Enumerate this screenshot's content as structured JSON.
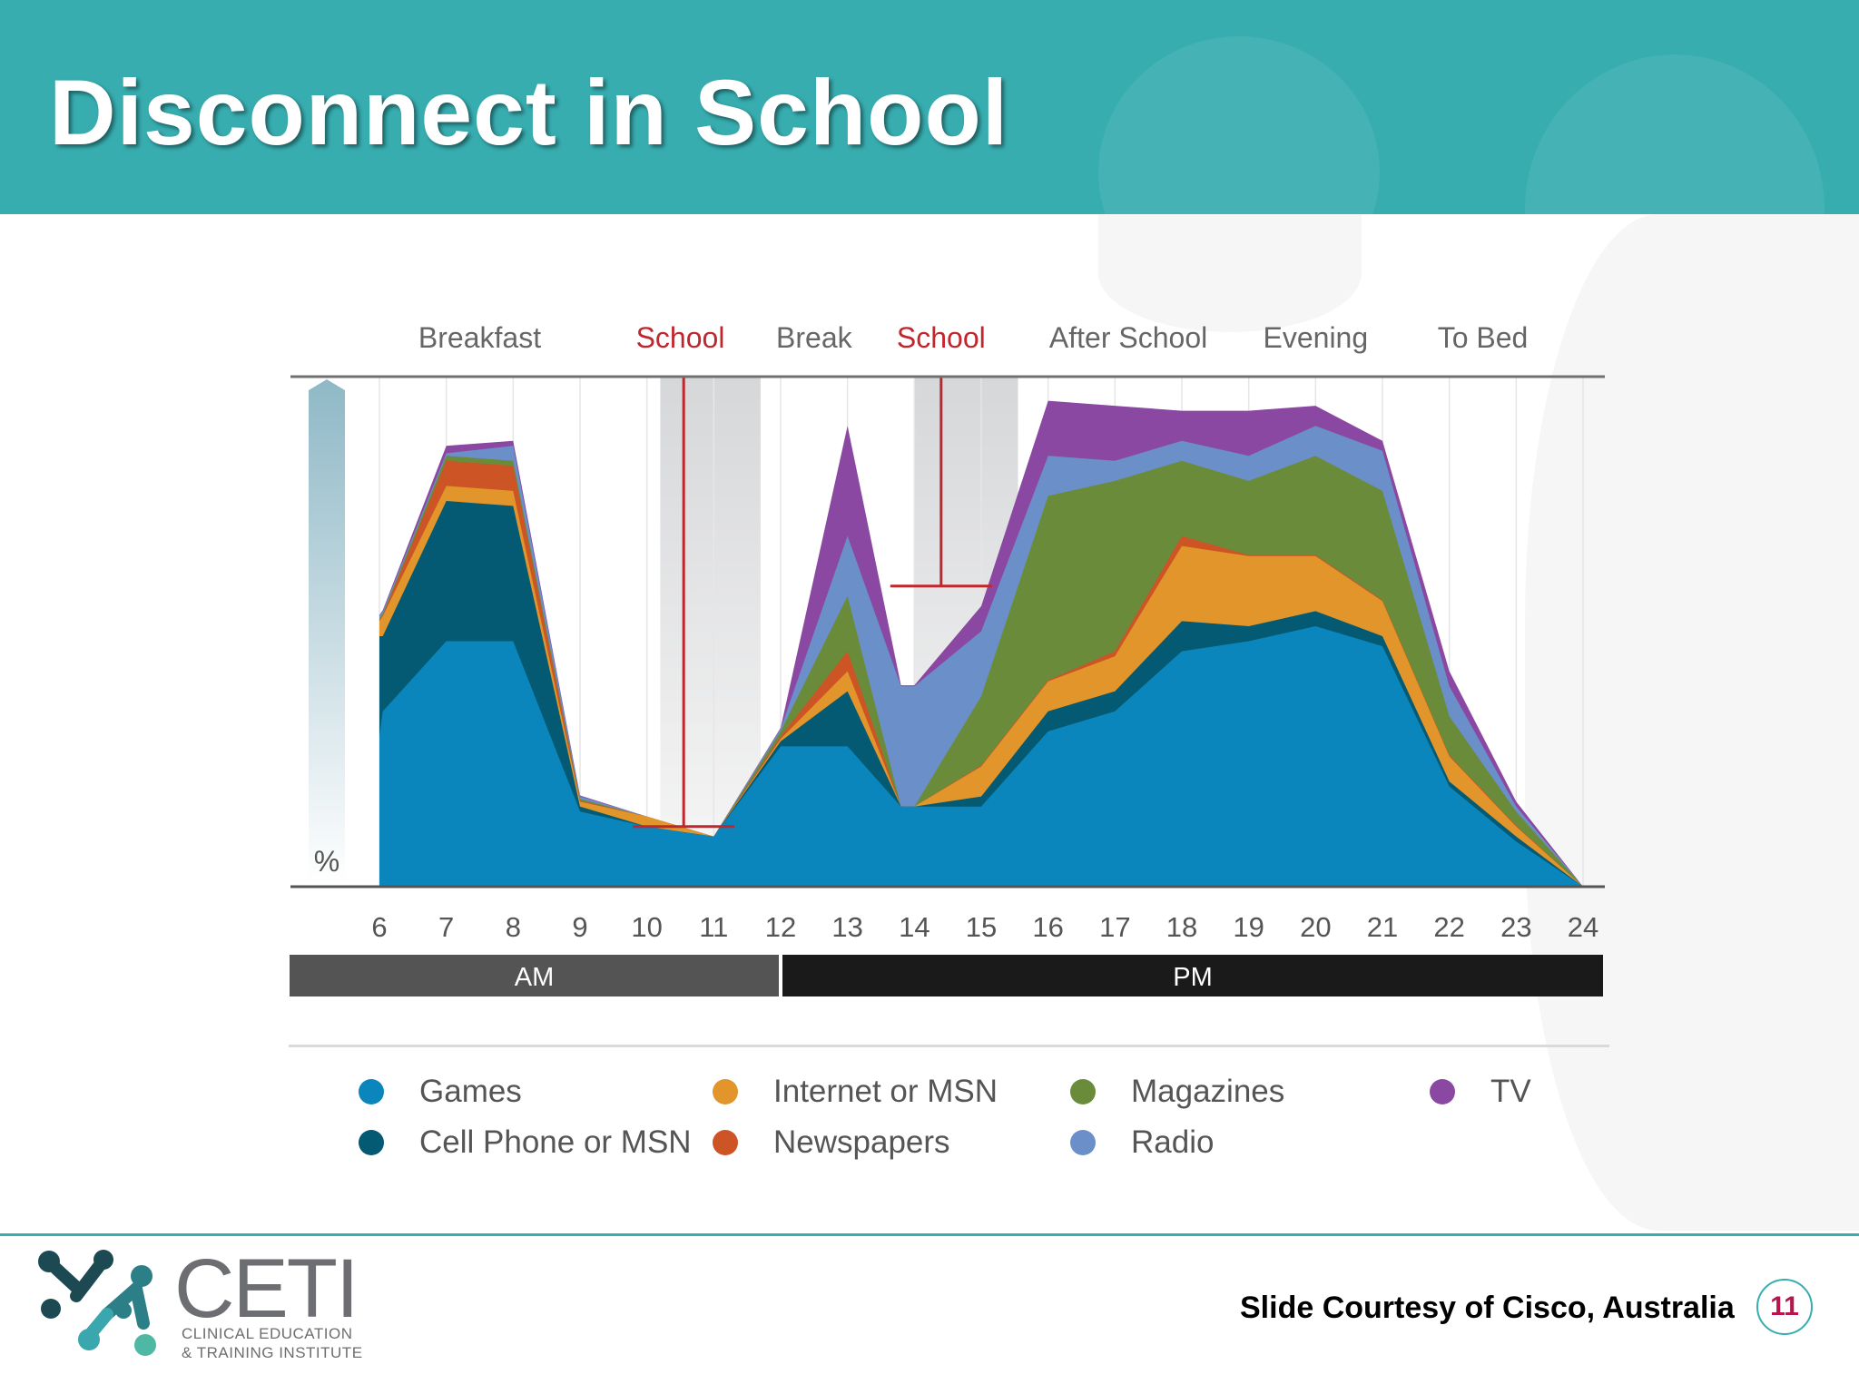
{
  "slide": {
    "title": "Disconnect in School",
    "courtesy": "Slide Courtesy of Cisco, Australia",
    "page_number": "11",
    "accent_color": "#37adb0"
  },
  "logo": {
    "name": "CETI",
    "line1": "CLINICAL EDUCATION",
    "line2": "& TRAINING INSTITUTE"
  },
  "chart_data": {
    "type": "area",
    "stacked": true,
    "ylabel": "%",
    "x": [
      6,
      7,
      8,
      9,
      10,
      11,
      12,
      13,
      14,
      15,
      16,
      17,
      18,
      19,
      20,
      21,
      22,
      23,
      24
    ],
    "x_range": [
      6,
      24
    ],
    "periods": [
      {
        "label": "Breakfast",
        "x": 7.5,
        "highlight": false
      },
      {
        "label": "School",
        "x": 10.5,
        "highlight": true
      },
      {
        "label": "Break",
        "x": 12.5,
        "highlight": false
      },
      {
        "label": "School",
        "x": 14.4,
        "highlight": true
      },
      {
        "label": "After School",
        "x": 17.2,
        "highlight": false
      },
      {
        "label": "Evening",
        "x": 20.0,
        "highlight": false
      },
      {
        "label": "To Bed",
        "x": 22.5,
        "highlight": false
      }
    ],
    "school_bands": [
      {
        "from": 10.2,
        "to": 11.7,
        "marker_x": 10.55,
        "marker_bottom": 12
      },
      {
        "from": 14.0,
        "to": 15.55,
        "marker_x": 14.4,
        "marker_bottom": 60
      }
    ],
    "day_parts": [
      {
        "label": "AM",
        "from": 6,
        "to": 12
      },
      {
        "label": "PM",
        "from": 12,
        "to": 24
      }
    ],
    "series": [
      {
        "name": "Games",
        "color": "#0b86bd",
        "points": [
          [
            6,
            30
          ],
          [
            6.05,
            35
          ],
          [
            7,
            49
          ],
          [
            8,
            49
          ],
          [
            9,
            15
          ],
          [
            10,
            12
          ],
          [
            11,
            10
          ],
          [
            12,
            28
          ],
          [
            13,
            28
          ],
          [
            13.8,
            16
          ],
          [
            14,
            16
          ],
          [
            15,
            16
          ],
          [
            16,
            31
          ],
          [
            17,
            35
          ],
          [
            18,
            47
          ],
          [
            19,
            49
          ],
          [
            20,
            52
          ],
          [
            21,
            48
          ],
          [
            22,
            20
          ],
          [
            23,
            9
          ],
          [
            24,
            0
          ]
        ]
      },
      {
        "name": "Cell Phone or MSN",
        "color": "#045a72",
        "points": [
          [
            6,
            50
          ],
          [
            6.05,
            50
          ],
          [
            7,
            77
          ],
          [
            8,
            76
          ],
          [
            9,
            16
          ],
          [
            10,
            12
          ],
          [
            11,
            10
          ],
          [
            12,
            29
          ],
          [
            13,
            39
          ],
          [
            13.8,
            16
          ],
          [
            14,
            16
          ],
          [
            15,
            18
          ],
          [
            16,
            35
          ],
          [
            17,
            39
          ],
          [
            18,
            53
          ],
          [
            19,
            52
          ],
          [
            20,
            55
          ],
          [
            21,
            50
          ],
          [
            22,
            21
          ],
          [
            23,
            10
          ],
          [
            24,
            0
          ]
        ]
      },
      {
        "name": "Internet or MSN",
        "color": "#e1952b",
        "points": [
          [
            6,
            53
          ],
          [
            6.05,
            54
          ],
          [
            7,
            80
          ],
          [
            8,
            79
          ],
          [
            9,
            17
          ],
          [
            10,
            14
          ],
          [
            11,
            10
          ],
          [
            12,
            29.5
          ],
          [
            13,
            43
          ],
          [
            13.8,
            16
          ],
          [
            14,
            16
          ],
          [
            15,
            24
          ],
          [
            16,
            41
          ],
          [
            17,
            46
          ],
          [
            18,
            68
          ],
          [
            19,
            66
          ],
          [
            20,
            66
          ],
          [
            21,
            57
          ],
          [
            22,
            26
          ],
          [
            23,
            12
          ],
          [
            24,
            0
          ]
        ]
      },
      {
        "name": "Newspapers",
        "color": "#cc5425",
        "points": [
          [
            6,
            53.2
          ],
          [
            6.05,
            54.2
          ],
          [
            7,
            85
          ],
          [
            8,
            84
          ],
          [
            9,
            17.2
          ],
          [
            10,
            14
          ],
          [
            11,
            10
          ],
          [
            12,
            30
          ],
          [
            13,
            47
          ],
          [
            13.8,
            16
          ],
          [
            14,
            16
          ],
          [
            15,
            24.2
          ],
          [
            16,
            41.2
          ],
          [
            17,
            47
          ],
          [
            18,
            70
          ],
          [
            19,
            66.2
          ],
          [
            20,
            66.2
          ],
          [
            21,
            57.2
          ],
          [
            22,
            26.2
          ],
          [
            23,
            12.2
          ],
          [
            24,
            0
          ]
        ]
      },
      {
        "name": "Magazines",
        "color": "#6a8c3a",
        "points": [
          [
            6,
            53.5
          ],
          [
            6.05,
            54.5
          ],
          [
            7,
            86
          ],
          [
            8,
            85
          ],
          [
            9,
            17.5
          ],
          [
            10,
            14
          ],
          [
            11,
            10
          ],
          [
            12,
            31
          ],
          [
            13,
            58
          ],
          [
            13.8,
            16
          ],
          [
            14,
            16
          ],
          [
            15,
            38
          ],
          [
            16,
            78
          ],
          [
            17,
            81
          ],
          [
            18,
            85
          ],
          [
            19,
            81
          ],
          [
            20,
            86
          ],
          [
            21,
            79
          ],
          [
            22,
            34
          ],
          [
            23,
            15
          ],
          [
            24,
            0
          ]
        ]
      },
      {
        "name": "Radio",
        "color": "#6b8fc9",
        "points": [
          [
            6,
            54
          ],
          [
            6.05,
            55
          ],
          [
            7,
            86.5
          ],
          [
            8,
            88
          ],
          [
            9,
            18
          ],
          [
            10,
            14
          ],
          [
            11,
            10
          ],
          [
            12,
            31.5
          ],
          [
            13,
            70
          ],
          [
            13.8,
            40
          ],
          [
            14,
            40
          ],
          [
            15,
            51
          ],
          [
            16,
            86
          ],
          [
            17,
            85
          ],
          [
            18,
            89
          ],
          [
            19,
            86
          ],
          [
            20,
            92
          ],
          [
            21,
            87
          ],
          [
            22,
            40
          ],
          [
            23,
            16
          ],
          [
            24,
            0
          ]
        ]
      },
      {
        "name": "TV",
        "color": "#8b48a2",
        "points": [
          [
            6,
            54.2
          ],
          [
            6.05,
            55.2
          ],
          [
            7,
            88
          ],
          [
            8,
            89
          ],
          [
            9,
            18.2
          ],
          [
            10,
            14
          ],
          [
            11,
            10
          ],
          [
            12,
            31.7
          ],
          [
            13,
            92
          ],
          [
            13.8,
            40.2
          ],
          [
            14,
            40.2
          ],
          [
            15,
            56
          ],
          [
            16,
            97
          ],
          [
            17,
            96
          ],
          [
            18,
            95
          ],
          [
            19,
            95
          ],
          [
            20,
            96
          ],
          [
            21,
            89
          ],
          [
            22,
            43
          ],
          [
            23,
            17
          ],
          [
            24,
            0
          ]
        ]
      }
    ],
    "legend": {
      "position": "bottom",
      "columns": [
        [
          "Games",
          "Cell Phone or MSN"
        ],
        [
          "Internet or MSN",
          "Newspapers"
        ],
        [
          "Magazines",
          "Radio"
        ],
        [
          "TV"
        ]
      ]
    }
  }
}
